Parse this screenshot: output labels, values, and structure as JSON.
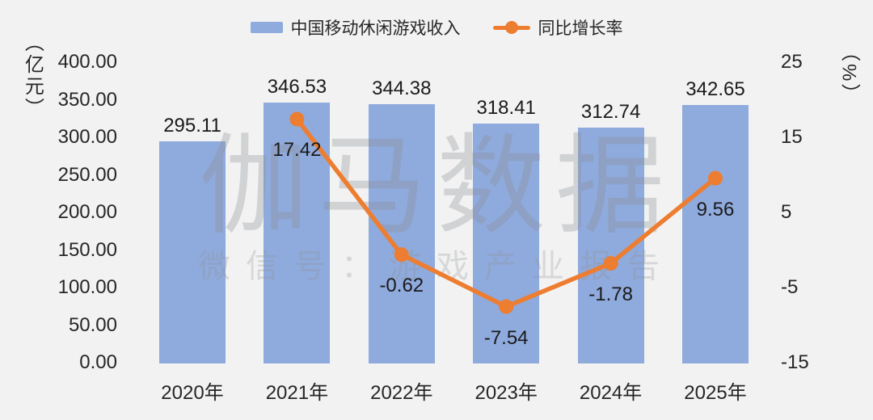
{
  "colors": {
    "background": "#f2f2f2",
    "bar": "#8faadc",
    "line": "#ed7d31",
    "text": "#262626"
  },
  "legend": {
    "items": [
      {
        "label": "中国移动休闲游戏收入",
        "marker": "bar-swatch",
        "color": "#8faadc"
      },
      {
        "label": "同比增长率",
        "marker": "line-dot-swatch",
        "color": "#ed7d31"
      }
    ]
  },
  "left_axis": {
    "title": "（亿元）",
    "ticks": [
      "400.00",
      "350.00",
      "300.00",
      "250.00",
      "200.00",
      "150.00",
      "100.00",
      "50.00",
      "0.00"
    ]
  },
  "right_axis": {
    "title": "（%）",
    "ticks": [
      "25",
      "15",
      "5",
      "-5",
      "-15"
    ]
  },
  "watermark": {
    "line1": "伽马数据",
    "line2": "微信号：游戏产业报告"
  },
  "chart_data": {
    "type": "bar+line",
    "categories": [
      "2020年",
      "2021年",
      "2022年",
      "2023年",
      "2024年",
      "2025年"
    ],
    "series": [
      {
        "name": "中国移动休闲游戏收入",
        "type": "bar",
        "axis": "left",
        "color": "#8faadc",
        "values": [
          295.11,
          346.53,
          344.38,
          318.41,
          312.74,
          342.65
        ],
        "labels": [
          "295.11",
          "346.53",
          "344.38",
          "318.41",
          "312.74",
          "342.65"
        ]
      },
      {
        "name": "同比增长率",
        "type": "line",
        "axis": "right",
        "color": "#ed7d31",
        "values": [
          null,
          17.42,
          -0.62,
          -7.54,
          -1.78,
          9.56
        ],
        "labels": [
          null,
          "17.42",
          "-0.62",
          "-7.54",
          "-1.78",
          "9.56"
        ]
      }
    ],
    "left_axis_range": [
      0,
      400
    ],
    "right_axis_range": [
      -15,
      25
    ],
    "xlabel": "",
    "ylabel_left": "（亿元）",
    "ylabel_right": "（%）",
    "grid": false,
    "legend_position": "top-center"
  }
}
